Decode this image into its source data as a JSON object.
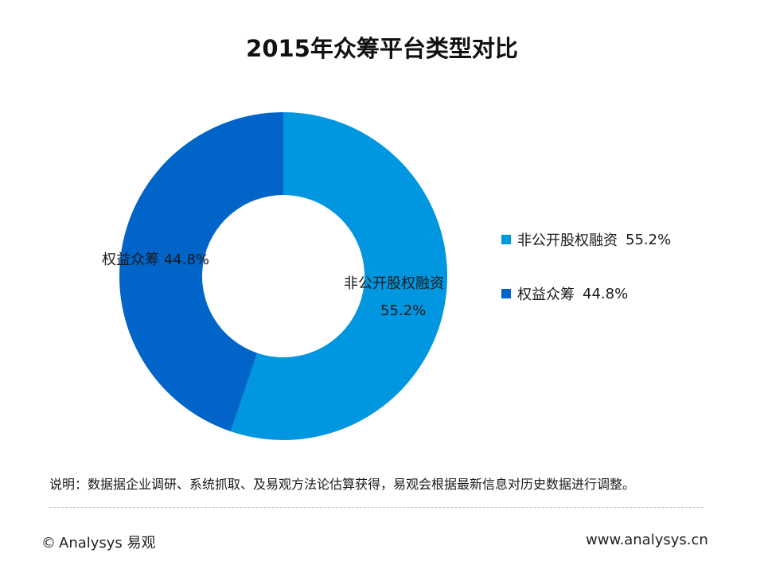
{
  "chart_data": {
    "type": "pie",
    "title": "2015年众筹平台类型对比",
    "hole": true,
    "slices": [
      {
        "label": "非公开股权融资",
        "value": 55.2,
        "value_label": "55.2%",
        "color": "#0096e0"
      },
      {
        "label": "权益众筹",
        "value": 44.8,
        "value_label": "44.8%",
        "color": "#0064c8"
      }
    ],
    "legend_position": "right"
  },
  "note": "说明：数据据企业调研、系统抓取、及易观方法论估算获得，易观会根据最新信息对历史数据进行调整。",
  "footer": {
    "copyright_symbol": "©",
    "brand": "Analysys 易观",
    "website": "www.analysys.cn"
  }
}
